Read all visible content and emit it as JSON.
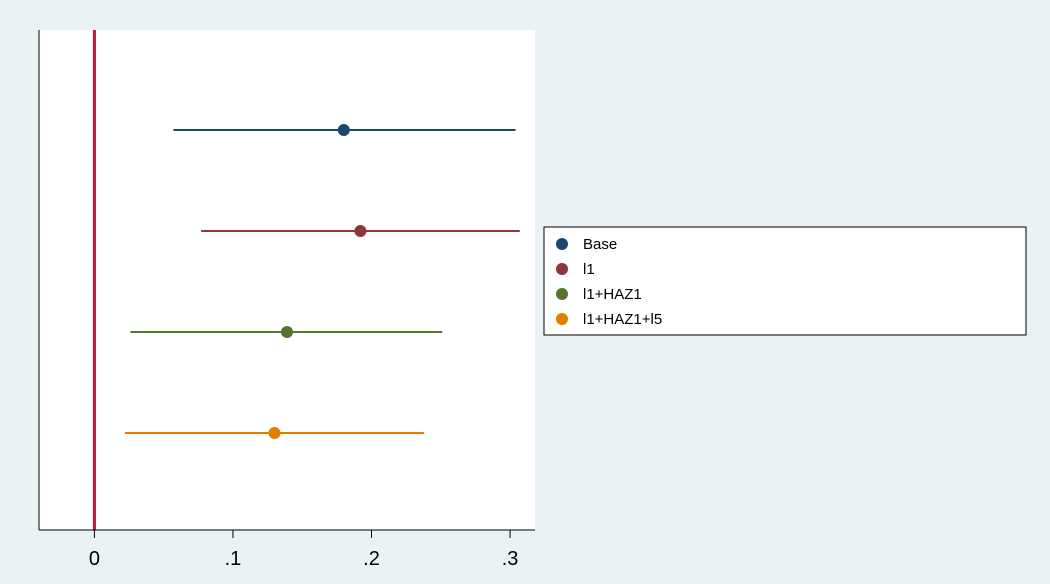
{
  "chart_data": {
    "type": "scatter",
    "subtype": "coefficient-plot",
    "title": "",
    "xlabel": "",
    "ylabel": "",
    "xlim": [
      -0.04,
      0.318
    ],
    "x_ticks": [
      {
        "value": 0,
        "label": "0"
      },
      {
        "value": 0.1,
        "label": ".1"
      },
      {
        "value": 0.2,
        "label": ".2"
      },
      {
        "value": 0.3,
        "label": ".3"
      }
    ],
    "reference_line": {
      "x": 0,
      "color": "#c0143c"
    },
    "grid": false,
    "legend_position": "right",
    "series": [
      {
        "name": "Base",
        "color": "#1a476f",
        "estimate": 0.18,
        "ci_low": 0.057,
        "ci_high": 0.304
      },
      {
        "name": "l1",
        "color": "#90353b",
        "estimate": 0.192,
        "ci_low": 0.077,
        "ci_high": 0.307
      },
      {
        "name": "l1+HAZ1",
        "color": "#55752f",
        "estimate": 0.139,
        "ci_low": 0.026,
        "ci_high": 0.251
      },
      {
        "name": "l1+HAZ1+l5",
        "color": "#e37e00",
        "estimate": 0.13,
        "ci_low": 0.022,
        "ci_high": 0.238
      }
    ]
  }
}
